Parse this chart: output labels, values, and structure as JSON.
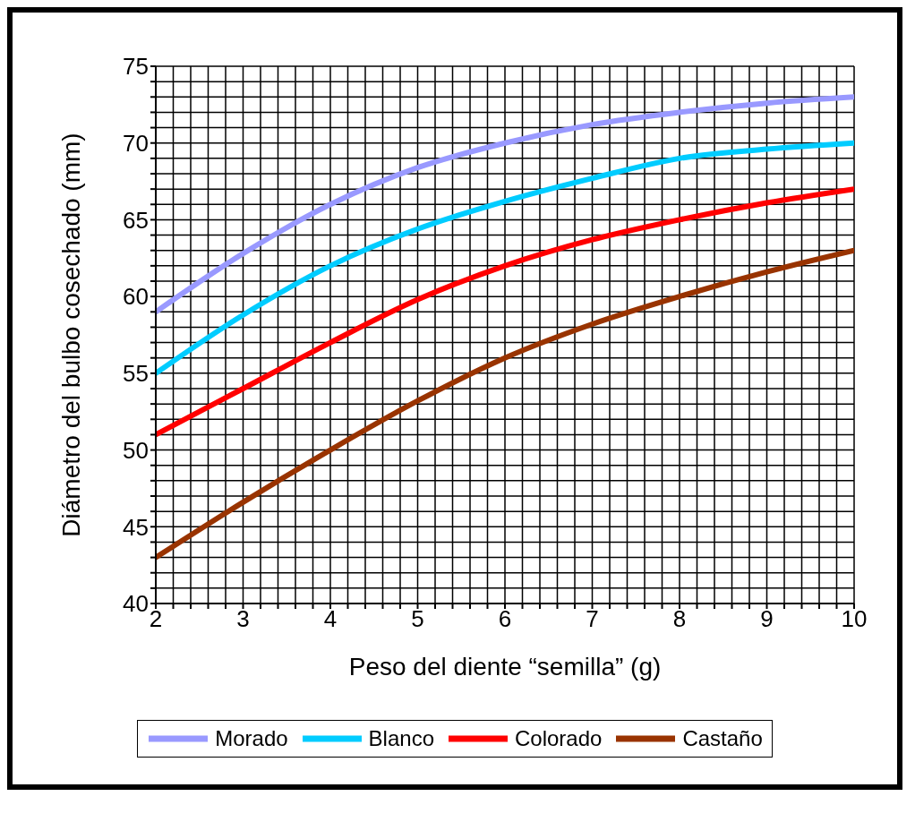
{
  "chart_data": {
    "type": "line",
    "xlabel": "Peso del diente “semilla” (g)",
    "ylabel": "Diámetro del bulbo cosechado (mm)",
    "x": [
      2,
      3,
      4,
      5,
      6,
      7,
      8,
      9,
      10
    ],
    "series": [
      {
        "name": "Morado",
        "color": "#9999ff",
        "values": [
          59,
          62.8,
          66,
          68.4,
          70,
          71.2,
          72,
          72.6,
          73
        ]
      },
      {
        "name": "Blanco",
        "color": "#00ccff",
        "values": [
          55,
          58.8,
          62,
          64.4,
          66.2,
          67.7,
          69,
          69.6,
          70
        ]
      },
      {
        "name": "Colorado",
        "color": "#ff0000",
        "values": [
          51,
          54,
          57,
          59.8,
          62,
          63.7,
          65,
          66.1,
          67
        ]
      },
      {
        "name": "Castaño",
        "color": "#993300",
        "values": [
          43,
          46.6,
          50,
          53.2,
          56,
          58.2,
          60,
          61.6,
          63
        ]
      }
    ],
    "xlim": [
      2,
      10
    ],
    "xticks": [
      2,
      {
        "value": 2.2,
        "label": null
      },
      {
        "value": 2.4,
        "label": null
      },
      {
        "value": 2.6,
        "label": null
      },
      {
        "value": 2.8,
        "label": null
      },
      3,
      {
        "value": 3.2,
        "label": null
      },
      {
        "value": 3.4,
        "label": null
      },
      {
        "value": 3.6,
        "label": null
      },
      {
        "value": 3.8,
        "label": null
      },
      4,
      {
        "value": 4.2,
        "label": null
      },
      {
        "value": 4.4,
        "label": null
      },
      {
        "value": 4.6,
        "label": null
      },
      {
        "value": 4.8,
        "label": null
      },
      5,
      {
        "value": 5.2,
        "label": null
      },
      {
        "value": 5.4,
        "label": null
      },
      {
        "value": 5.6,
        "label": null
      },
      {
        "value": 5.8,
        "label": null
      },
      6,
      {
        "value": 6.2,
        "label": null
      },
      {
        "value": 6.4,
        "label": null
      },
      {
        "value": 6.6,
        "label": null
      },
      {
        "value": 6.8,
        "label": null
      },
      7,
      {
        "value": 7.2,
        "label": null
      },
      {
        "value": 7.4,
        "label": null
      },
      {
        "value": 7.6,
        "label": null
      },
      {
        "value": 7.8,
        "label": null
      },
      8,
      {
        "value": 8.2,
        "label": null
      },
      {
        "value": 8.4,
        "label": null
      },
      {
        "value": 8.6,
        "label": null
      },
      {
        "value": 8.8,
        "label": null
      },
      9,
      {
        "value": 9.2,
        "label": null
      },
      {
        "value": 9.4,
        "label": null
      },
      {
        "value": 9.6,
        "label": null
      },
      {
        "value": 9.8,
        "label": null
      },
      10
    ],
    "ylim": [
      40,
      75
    ],
    "yticks": [
      40,
      {
        "value": 41,
        "label": null
      },
      {
        "value": 42,
        "label": null
      },
      {
        "value": 43,
        "label": null
      },
      {
        "value": 44,
        "label": null
      },
      45,
      {
        "value": 46,
        "label": null
      },
      {
        "value": 47,
        "label": null
      },
      {
        "value": 48,
        "label": null
      },
      {
        "value": 49,
        "label": null
      },
      50,
      {
        "value": 51,
        "label": null
      },
      {
        "value": 52,
        "label": null
      },
      {
        "value": 53,
        "label": null
      },
      {
        "value": 54,
        "label": null
      },
      55,
      {
        "value": 56,
        "label": null
      },
      {
        "value": 57,
        "label": null
      },
      {
        "value": 58,
        "label": null
      },
      {
        "value": 59,
        "label": null
      },
      60,
      {
        "value": 61,
        "label": null
      },
      {
        "value": 62,
        "label": null
      },
      {
        "value": 63,
        "label": null
      },
      {
        "value": 64,
        "label": null
      },
      65,
      {
        "value": 66,
        "label": null
      },
      {
        "value": 67,
        "label": null
      },
      {
        "value": 68,
        "label": null
      },
      {
        "value": 69,
        "label": null
      },
      70,
      {
        "value": 71,
        "label": null
      },
      {
        "value": 72,
        "label": null
      },
      {
        "value": 73,
        "label": null
      },
      {
        "value": 74,
        "label": null
      },
      75
    ],
    "grid": true,
    "legend": "bottom",
    "marker": "none",
    "line_style": "solid"
  }
}
